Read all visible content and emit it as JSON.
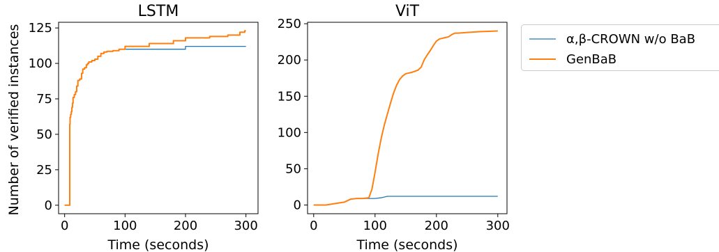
{
  "figure": {
    "ylabel": "Number of verified instances"
  },
  "legend": {
    "placement": "outside-right",
    "entries": [
      {
        "label": "α,β-CROWN w/o BaB",
        "color": "#1f77b4"
      },
      {
        "label": "GenBaB",
        "color": "#ff7f0e"
      }
    ]
  },
  "chart_data": [
    {
      "type": "line",
      "title": "LSTM",
      "xlabel": "Time (seconds)",
      "ylabel": "Number of verified instances",
      "xlim": [
        -10,
        320
      ],
      "ylim": [
        -6,
        129
      ],
      "xticks": [
        0,
        100,
        200,
        300
      ],
      "yticks": [
        0,
        25,
        50,
        75,
        100,
        125
      ],
      "grid": false,
      "series": [
        {
          "name": "α,β-CROWN w/o BaB",
          "color": "#1f77b4",
          "step": true,
          "x": [
            0,
            8,
            8.5,
            9,
            10,
            11,
            12,
            13,
            14,
            16,
            18,
            20,
            22,
            25,
            28,
            30,
            33,
            36,
            38,
            40,
            45,
            50,
            55,
            60,
            65,
            70,
            80,
            90,
            100,
            190,
            200,
            300
          ],
          "y": [
            0,
            0,
            57,
            62,
            64,
            66,
            69,
            72,
            76,
            78,
            80,
            84,
            88,
            89,
            93,
            96,
            97,
            99,
            100,
            101,
            102,
            103,
            105,
            107,
            108,
            108.5,
            109,
            110,
            110,
            110,
            112,
            112
          ]
        },
        {
          "name": "GenBaB",
          "color": "#ff7f0e",
          "step": true,
          "x": [
            0,
            8,
            8.5,
            9,
            10,
            11,
            12,
            13,
            14,
            16,
            18,
            20,
            22,
            25,
            28,
            30,
            33,
            36,
            38,
            40,
            45,
            50,
            55,
            60,
            65,
            70,
            80,
            90,
            100,
            140,
            180,
            200,
            240,
            270,
            290,
            298,
            300
          ],
          "y": [
            0,
            0,
            57,
            62,
            64,
            66,
            69,
            72,
            76,
            78,
            80,
            84,
            88,
            89,
            93,
            96,
            97,
            99,
            100,
            101,
            102,
            103,
            105,
            107,
            108,
            108.5,
            109,
            110,
            112,
            114,
            116,
            118,
            119,
            120,
            122,
            123,
            123
          ]
        }
      ]
    },
    {
      "type": "line",
      "title": "ViT",
      "xlabel": "Time (seconds)",
      "ylabel": "",
      "xlim": [
        -10,
        315
      ],
      "ylim": [
        -12,
        252
      ],
      "xticks": [
        0,
        100,
        200,
        300
      ],
      "yticks": [
        0,
        50,
        100,
        150,
        200,
        250
      ],
      "grid": false,
      "series": [
        {
          "name": "α,β-CROWN w/o BaB",
          "color": "#1f77b4",
          "step": false,
          "x": [
            0,
            20,
            35,
            50,
            60,
            70,
            80,
            90,
            100,
            110,
            120,
            300
          ],
          "y": [
            0,
            0,
            2,
            4,
            8,
            9,
            9,
            9,
            9,
            10,
            12,
            12
          ]
        },
        {
          "name": "GenBaB",
          "color": "#ff7f0e",
          "step": false,
          "x": [
            0,
            20,
            35,
            50,
            60,
            70,
            80,
            90,
            95,
            100,
            105,
            110,
            115,
            120,
            125,
            130,
            135,
            140,
            145,
            150,
            160,
            170,
            175,
            180,
            185,
            190,
            195,
            200,
            205,
            210,
            215,
            220,
            225,
            230,
            235,
            250,
            270,
            300
          ],
          "y": [
            0,
            0,
            2,
            4,
            8,
            9,
            9,
            10,
            22,
            45,
            70,
            92,
            110,
            125,
            140,
            154,
            165,
            173,
            178,
            181,
            183,
            186,
            190,
            200,
            207,
            213,
            220,
            226,
            229,
            230,
            231,
            232,
            235,
            237,
            237,
            238,
            239,
            240
          ]
        }
      ]
    }
  ]
}
